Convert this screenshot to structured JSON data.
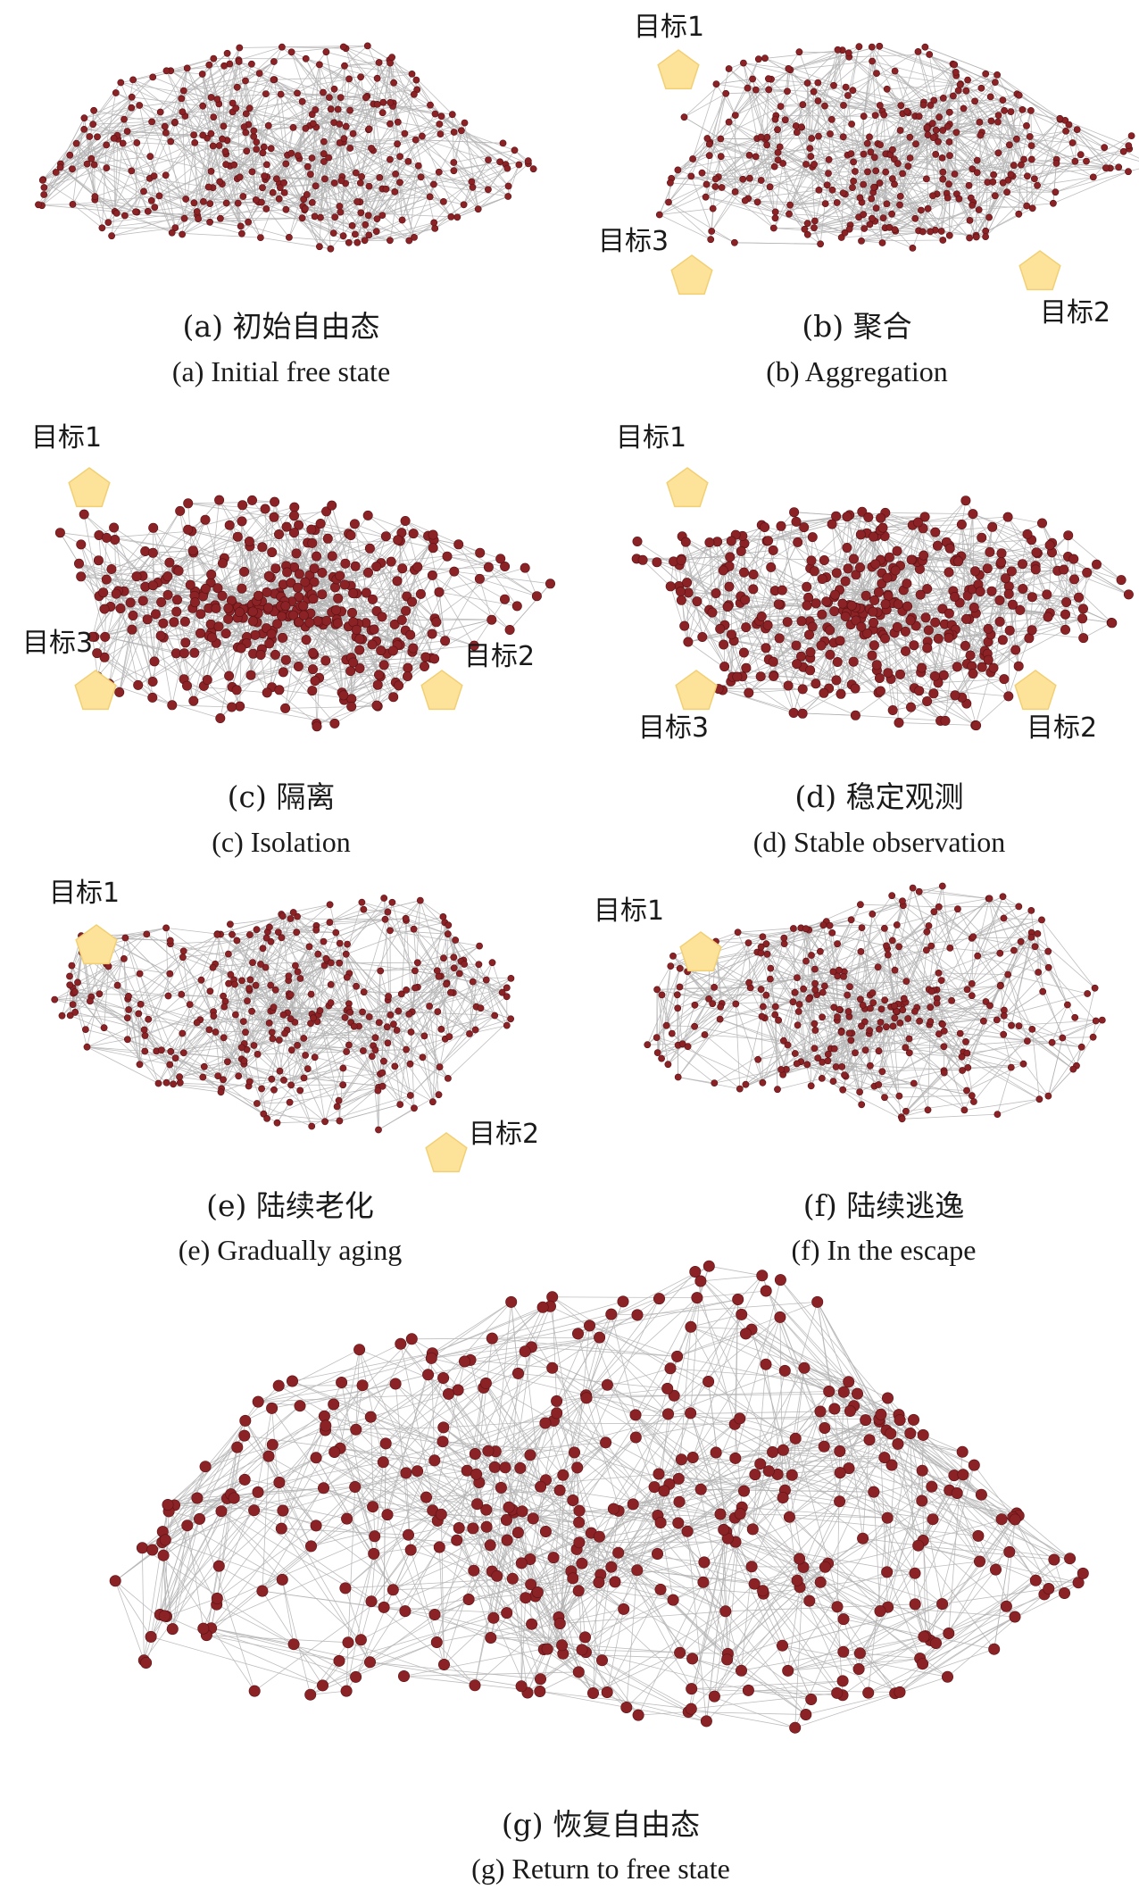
{
  "panels": [
    {
      "id": "a",
      "caption_cn": "(a) 初始自由态",
      "caption_en": "(a) Initial free state",
      "network": {
        "nodes": 340,
        "spread": 0.95,
        "node_size": "small"
      },
      "targets": []
    },
    {
      "id": "b",
      "caption_cn": "(b) 聚合",
      "caption_en": "(b) Aggregation",
      "network": {
        "nodes": 340,
        "spread": 0.95,
        "node_size": "small"
      },
      "targets": [
        {
          "label": "目标1",
          "position": "top-left",
          "color": "#fde9b0"
        },
        {
          "label": "目标3",
          "position": "bottom-left",
          "color": "#fcd97a"
        },
        {
          "label": "目标2",
          "position": "bottom-right",
          "color": "#fcd97a"
        }
      ]
    },
    {
      "id": "c",
      "caption_cn": "(c) 隔离",
      "caption_en": "(c) Isolation",
      "network": {
        "nodes": 380,
        "spread": 0.72,
        "node_size": "large"
      },
      "targets": [
        {
          "label": "目标1",
          "position": "top-left",
          "color": "#fde9b0"
        },
        {
          "label": "目标3",
          "position": "bottom-left",
          "color": "#fcd97a"
        },
        {
          "label": "目标2",
          "position": "bottom-right",
          "color": "#fcd97a"
        }
      ]
    },
    {
      "id": "d",
      "caption_cn": "(d) 稳定观测",
      "caption_en": "(d) Stable observation",
      "network": {
        "nodes": 380,
        "spread": 0.78,
        "node_size": "large"
      },
      "targets": [
        {
          "label": "目标1",
          "position": "top-left",
          "color": "#fde9b0"
        },
        {
          "label": "目标3",
          "position": "bottom-left",
          "color": "#fcd97a"
        },
        {
          "label": "目标2",
          "position": "bottom-right",
          "color": "#fcd97a"
        }
      ]
    },
    {
      "id": "e",
      "caption_cn": "(e) 陆续老化",
      "caption_en": "(e) Gradually aging",
      "network": {
        "nodes": 320,
        "spread": 0.95,
        "node_size": "small"
      },
      "targets": [
        {
          "label": "目标1",
          "position": "top-left",
          "color": "#fde9b0"
        },
        {
          "label": "目标2",
          "position": "bottom-right",
          "color": "#fcd97a"
        }
      ]
    },
    {
      "id": "f",
      "caption_cn": "(f) 陆续逃逸",
      "caption_en": "(f) In the escape",
      "network": {
        "nodes": 300,
        "spread": 0.9,
        "node_size": "small"
      },
      "targets": [
        {
          "label": "目标1",
          "position": "top-left",
          "color": "#fde9b0"
        }
      ]
    },
    {
      "id": "g",
      "caption_cn": "(g) 恢复自由态",
      "caption_en": "(g) Return to free state",
      "network": {
        "nodes": 420,
        "spread": 1.0,
        "node_size": "medium"
      },
      "targets": []
    }
  ],
  "colors": {
    "node": "#8b2226",
    "edge": "#b3b3b3",
    "target_light": "#fde9b0",
    "target": "#fcd97a"
  }
}
